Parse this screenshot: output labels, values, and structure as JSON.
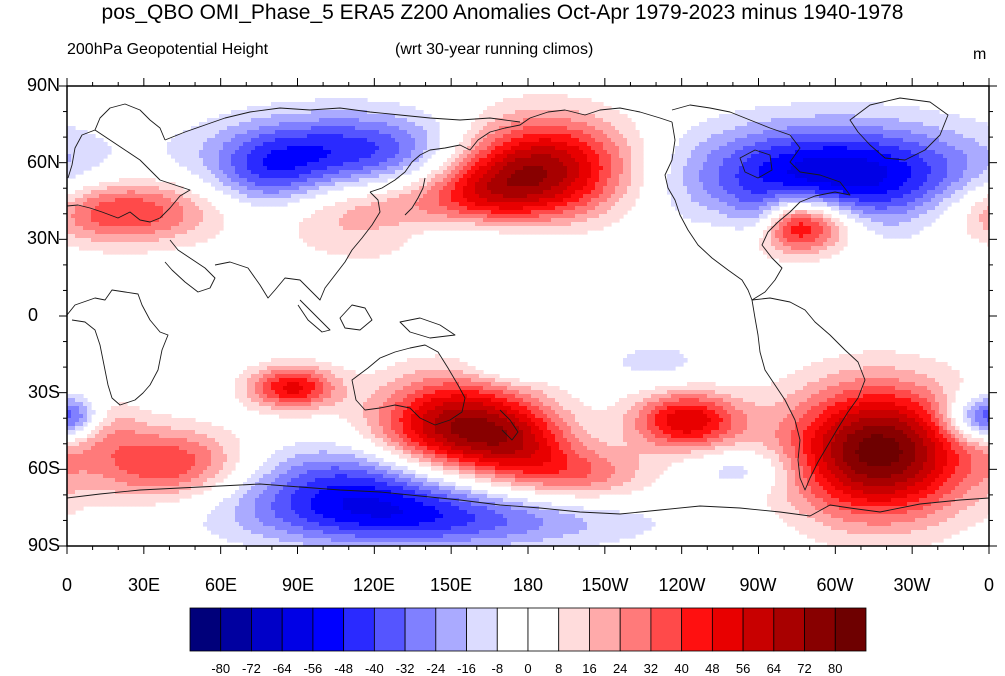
{
  "title": "pos_QBO OMI_Phase_5 ERA5 Z200 Anomalies Oct-Apr 1979-2023 minus 1940-1978",
  "subtitle_left": "200hPa Geopotential Height",
  "subtitle_center": "(wrt 30-year running climos)",
  "units": "m",
  "lat_labels": [
    "90N",
    "60N",
    "30N",
    "0",
    "30S",
    "60S",
    "90S"
  ],
  "lon_labels": [
    "0",
    "30E",
    "60E",
    "90E",
    "120E",
    "150E",
    "180",
    "150W",
    "120W",
    "90W",
    "60W",
    "30W",
    "0"
  ],
  "colorbar": {
    "colors": [
      "#00007a",
      "#0000a0",
      "#0000c8",
      "#0000e6",
      "#0000ff",
      "#2a2aff",
      "#5555ff",
      "#8080ff",
      "#aaaaff",
      "#dcdcff",
      "#ffffff",
      "#ffffff",
      "#ffdcdc",
      "#ffaaaa",
      "#ff7a7a",
      "#ff4a4a",
      "#ff1010",
      "#e80000",
      "#c80000",
      "#a80000",
      "#880000",
      "#6e0000"
    ],
    "labels": [
      "-80",
      "-72",
      "-64",
      "-56",
      "-48",
      "-40",
      "-32",
      "-24",
      "-16",
      "-8",
      "0",
      "8",
      "16",
      "24",
      "32",
      "40",
      "48",
      "56",
      "64",
      "72",
      "80"
    ]
  },
  "chart_data": {
    "type": "heatmap",
    "title": "pos_QBO OMI_Phase_5 ERA5 Z200 Anomalies Oct-Apr 1979-2023 minus 1940-1978",
    "variable": "200hPa Geopotential Height",
    "reference": "(wrt 30-year running climos)",
    "units": "m",
    "x_range": [
      0,
      360
    ],
    "y_range": [
      -90,
      90
    ],
    "value_range": [
      -88,
      88
    ],
    "anomaly_centers": [
      {
        "lon": 185,
        "lat": 58,
        "value": 70,
        "rlon": 25,
        "rlat": 14
      },
      {
        "lon": 163,
        "lat": 48,
        "value": 25,
        "rlon": 18,
        "rlat": 10
      },
      {
        "lon": 20,
        "lat": 41,
        "value": 45,
        "rlon": 25,
        "rlat": 9
      },
      {
        "lon": 120,
        "lat": 40,
        "value": 25,
        "rlon": 25,
        "rlat": 12
      },
      {
        "lon": 285,
        "lat": 36,
        "value": 68,
        "rlon": 15,
        "rlat": 8
      },
      {
        "lon": 110,
        "lat": 64,
        "value": -48,
        "rlon": 35,
        "rlat": 11
      },
      {
        "lon": 78,
        "lat": 55,
        "value": -24,
        "rlon": 15,
        "rlat": 10
      },
      {
        "lon": 300,
        "lat": 55,
        "value": -65,
        "rlon": 40,
        "rlat": 14
      },
      {
        "lon": 270,
        "lat": 38,
        "value": -28,
        "rlon": 8,
        "rlat": 7
      },
      {
        "lon": 155,
        "lat": 33,
        "value": -16,
        "rlon": 25,
        "rlat": 6
      },
      {
        "lon": 152,
        "lat": -44,
        "value": 72,
        "rlon": 22,
        "rlat": 14
      },
      {
        "lon": 178,
        "lat": -50,
        "value": 30,
        "rlon": 15,
        "rlat": 10
      },
      {
        "lon": 242,
        "lat": -41,
        "value": 55,
        "rlon": 15,
        "rlat": 8
      },
      {
        "lon": 317,
        "lat": -53,
        "value": 85,
        "rlon": 25,
        "rlat": 18
      },
      {
        "lon": 88,
        "lat": -28,
        "value": 50,
        "rlon": 12,
        "rlat": 6
      },
      {
        "lon": 40,
        "lat": -58,
        "value": 42,
        "rlon": 22,
        "rlat": 10
      },
      {
        "lon": 200,
        "lat": -62,
        "value": 30,
        "rlon": 20,
        "rlat": 8
      },
      {
        "lon": 12,
        "lat": -43,
        "value": 16,
        "rlon": 12,
        "rlat": 8
      },
      {
        "lon": 115,
        "lat": -68,
        "value": -48,
        "rlon": 35,
        "rlat": 12
      },
      {
        "lon": 150,
        "lat": -80,
        "value": -30,
        "rlon": 50,
        "rlat": 8
      },
      {
        "lon": 355,
        "lat": -40,
        "value": -35,
        "rlon": 10,
        "rlat": 7
      },
      {
        "lon": 3,
        "lat": -40,
        "value": -30,
        "rlon": 8,
        "rlat": 6
      },
      {
        "lon": 265,
        "lat": -60,
        "value": -18,
        "rlon": 15,
        "rlat": 6
      },
      {
        "lon": 230,
        "lat": -18,
        "value": -12,
        "rlon": 15,
        "rlat": 6
      },
      {
        "lon": 172,
        "lat": -20,
        "value": -15,
        "rlon": 12,
        "rlat": 5
      }
    ]
  }
}
